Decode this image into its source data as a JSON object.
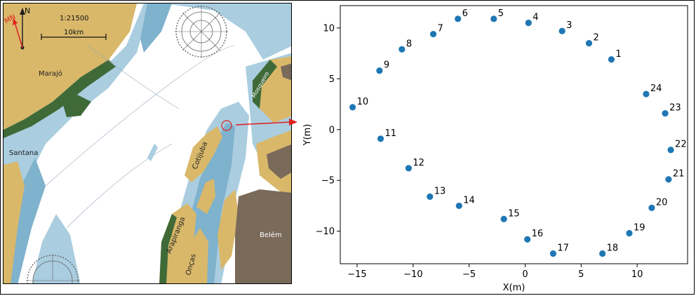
{
  "map": {
    "scale_label": "1:21500",
    "scale_bar_label": "10km",
    "north_label": "N",
    "magnetic_north_label": "MN",
    "place_labels": {
      "marajo": "Marajó",
      "santana": "Santana",
      "cotijuba": "Cotijuba",
      "arapiranga": "Arapiranga",
      "oncas": "Onças",
      "belem": "Belém",
      "mosqueiro": "Mosqueiro"
    },
    "colors": {
      "deep_water": "#ffffff",
      "shallow_water": "#aacde0",
      "mid_water": "#7fb2cc",
      "land": "#d9b86a",
      "mangrove": "#3f6a38",
      "urban": "#7a6a5a",
      "marker": "#e02020"
    }
  },
  "chart_data": {
    "type": "scatter",
    "xlabel": "X(m)",
    "ylabel": "Y(m)",
    "xlim": [
      -16.5,
      14.5
    ],
    "ylim": [
      -13.2,
      12.2
    ],
    "xticks": [
      -15,
      -10,
      -5,
      0,
      5,
      10
    ],
    "yticks": [
      -10,
      -5,
      0,
      5,
      10
    ],
    "xtick_labels": [
      "−15",
      "−10",
      "−5",
      "0",
      "5",
      "10"
    ],
    "ytick_labels": [
      "−10",
      "−5",
      "0",
      "5",
      "10"
    ],
    "grid": false,
    "marker_color": "#1f77b4",
    "points": [
      {
        "label": "1",
        "x": 7.7,
        "y": 6.9
      },
      {
        "label": "2",
        "x": 5.7,
        "y": 8.5
      },
      {
        "label": "3",
        "x": 3.3,
        "y": 9.7
      },
      {
        "label": "4",
        "x": 0.3,
        "y": 10.5
      },
      {
        "label": "5",
        "x": -2.8,
        "y": 10.9
      },
      {
        "label": "6",
        "x": -6.0,
        "y": 10.9
      },
      {
        "label": "7",
        "x": -8.2,
        "y": 9.4
      },
      {
        "label": "8",
        "x": -11.0,
        "y": 7.9
      },
      {
        "label": "9",
        "x": -13.0,
        "y": 5.8
      },
      {
        "label": "10",
        "x": -15.4,
        "y": 2.2
      },
      {
        "label": "11",
        "x": -12.9,
        "y": -0.9
      },
      {
        "label": "12",
        "x": -10.4,
        "y": -3.8
      },
      {
        "label": "13",
        "x": -8.5,
        "y": -6.6
      },
      {
        "label": "14",
        "x": -5.9,
        "y": -7.5
      },
      {
        "label": "15",
        "x": -1.9,
        "y": -8.8
      },
      {
        "label": "16",
        "x": 0.2,
        "y": -10.8
      },
      {
        "label": "17",
        "x": 2.5,
        "y": -12.2
      },
      {
        "label": "18",
        "x": 6.9,
        "y": -12.2
      },
      {
        "label": "19",
        "x": 9.3,
        "y": -10.2
      },
      {
        "label": "20",
        "x": 11.3,
        "y": -7.7
      },
      {
        "label": "21",
        "x": 12.8,
        "y": -4.9
      },
      {
        "label": "22",
        "x": 13.0,
        "y": -2.0
      },
      {
        "label": "23",
        "x": 12.5,
        "y": 1.6
      },
      {
        "label": "24",
        "x": 10.8,
        "y": 3.5
      }
    ]
  }
}
